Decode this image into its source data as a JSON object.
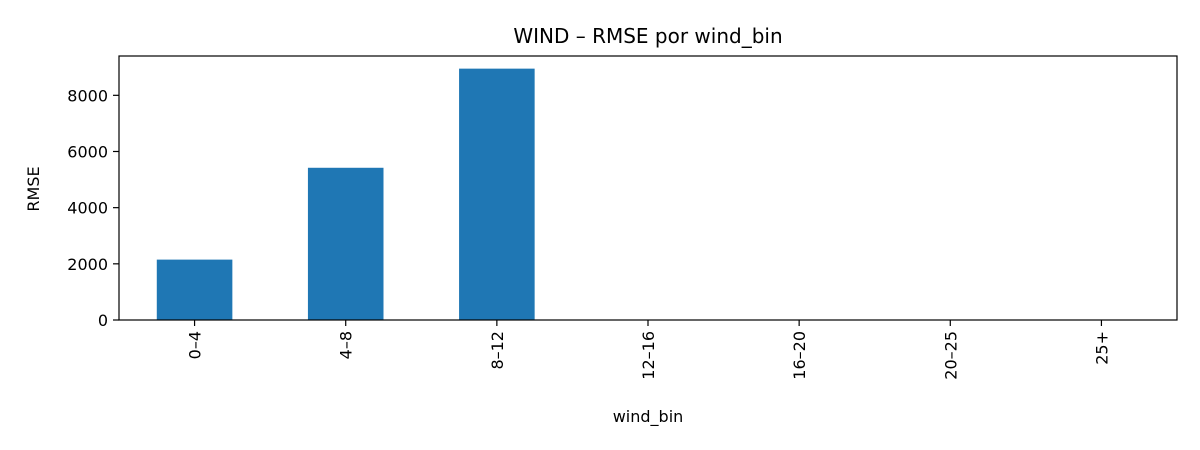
{
  "chart_data": {
    "type": "bar",
    "title": "WIND – RMSE por wind_bin",
    "xlabel": "wind_bin",
    "ylabel": "RMSE",
    "categories": [
      "0–4",
      "4–8",
      "8–12",
      "12–16",
      "16–20",
      "20–25",
      "25+"
    ],
    "values": [
      2150,
      5420,
      8950,
      0,
      0,
      0,
      0
    ],
    "ylim": [
      0,
      9400
    ],
    "yticks": [
      0,
      2000,
      4000,
      6000,
      8000
    ],
    "grid": false,
    "legend": "none",
    "bar_color": "#1f77b4"
  }
}
